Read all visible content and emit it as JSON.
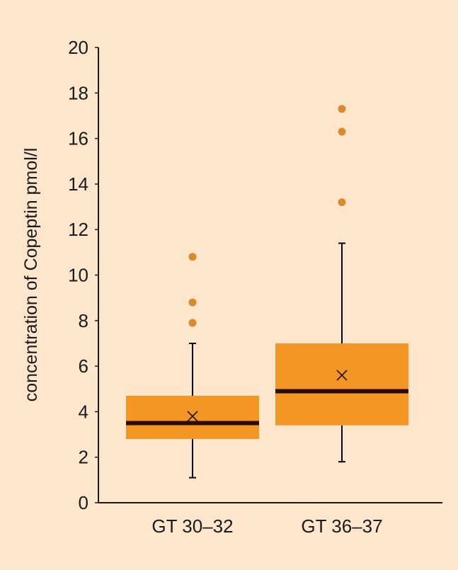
{
  "chart_data": {
    "type": "box",
    "title": "",
    "xlabel": "",
    "ylabel": "concentration of Copeptin pmol/l",
    "ylim": [
      0,
      20
    ],
    "yticks": [
      0,
      2,
      4,
      6,
      8,
      10,
      12,
      14,
      16,
      18,
      20
    ],
    "grid": false,
    "categories": [
      "GT 30–32",
      "GT 36–37"
    ],
    "boxes": [
      {
        "category": "GT 30–32",
        "whisker_low": 1.1,
        "q1": 2.8,
        "median": 3.5,
        "q3": 4.7,
        "whisker_high": 7.0,
        "mean": 3.8,
        "outliers": [
          7.9,
          8.8,
          10.8
        ]
      },
      {
        "category": "GT 36–37",
        "whisker_low": 1.8,
        "q1": 3.4,
        "median": 4.9,
        "q3": 7.0,
        "whisker_high": 11.4,
        "mean": 5.6,
        "outliers": [
          13.2,
          16.3,
          17.3
        ]
      }
    ],
    "colors": {
      "background": "#fde6cc",
      "box_fill": "#f39623",
      "outlier": "#d88a2c",
      "median": "#2a0a05",
      "axis": "#1a1a1a"
    }
  }
}
